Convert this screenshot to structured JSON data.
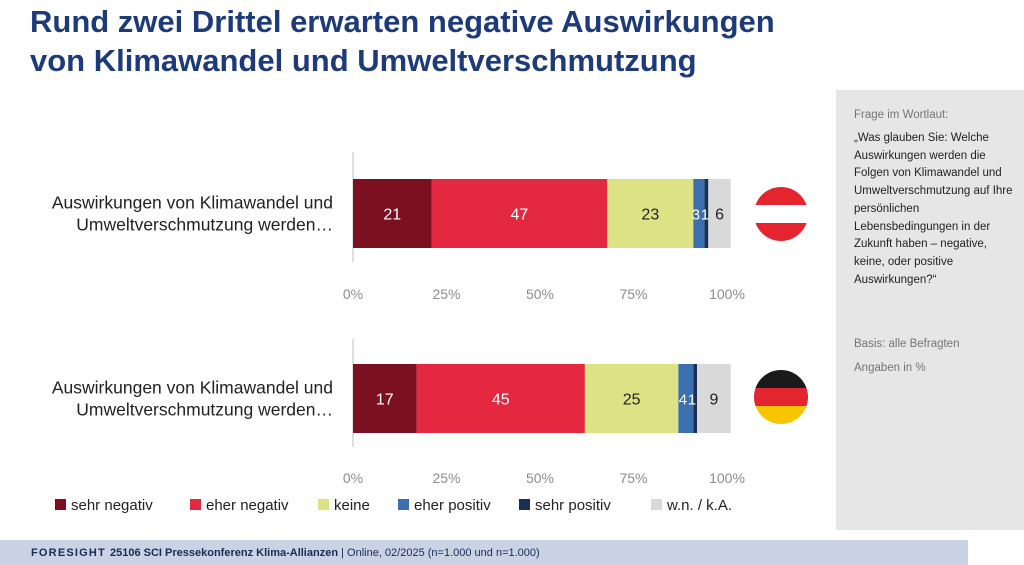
{
  "title": {
    "line1": "Rund zwei Drittel erwarten negative Auswirkungen",
    "line2": "von Klimawandel und Umweltverschmutzung"
  },
  "sidebar": {
    "question_heading": "Frage im Wortlaut:",
    "question_text": "„Was glauben Sie: Welche Auswirkungen werden die Folgen von Klimawandel und Umweltverschmutzung auf Ihre persönlichen Lebensbedingungen in der Zukunft haben – negative, keine, oder positive Auswirkungen?“",
    "basis": "Basis: alle Befragten",
    "unit": "Angaben in %"
  },
  "footer": {
    "brand": "FORESIGHT",
    "project": "25106 SCI Pressekonferenz Klima-Allianzen",
    "method": "| Online, 02/2025 (n=1.000 und n=1.000)"
  },
  "colors": {
    "title": "#1d3a7a",
    "sehr_negativ": "#7b1020",
    "eher_negativ": "#e3283f",
    "keine": "#dde384",
    "eher_positiv": "#3c6fb0",
    "sehr_positiv": "#1a2f52",
    "wn_ka": "#d9d9d9",
    "flag_at_red": "#e4252f",
    "flag_de_black": "#1a1a1a",
    "flag_de_red": "#e4252f",
    "flag_de_gold": "#f7c600"
  },
  "chart_data": [
    {
      "type": "bar",
      "orientation": "horizontal",
      "stacked": true,
      "country_flag": "Austria",
      "categories": [
        "Auswirkungen von Klimawandel und Umweltverschmutzung werden…"
      ],
      "xlim": [
        0,
        100
      ],
      "x_ticks": [
        "0%",
        "25%",
        "50%",
        "75%",
        "100%"
      ],
      "series": [
        {
          "name": "sehr negativ",
          "values": [
            21
          ]
        },
        {
          "name": "eher negativ",
          "values": [
            47
          ]
        },
        {
          "name": "keine",
          "values": [
            23
          ]
        },
        {
          "name": "eher positiv",
          "values": [
            3
          ]
        },
        {
          "name": "sehr positiv",
          "values": [
            1
          ]
        },
        {
          "name": "w.n. / k.A.",
          "values": [
            6
          ]
        }
      ]
    },
    {
      "type": "bar",
      "orientation": "horizontal",
      "stacked": true,
      "country_flag": "Germany",
      "categories": [
        "Auswirkungen von Klimawandel und Umweltverschmutzung werden…"
      ],
      "xlim": [
        0,
        100
      ],
      "x_ticks": [
        "0%",
        "25%",
        "50%",
        "75%",
        "100%"
      ],
      "series": [
        {
          "name": "sehr negativ",
          "values": [
            17
          ]
        },
        {
          "name": "eher negativ",
          "values": [
            45
          ]
        },
        {
          "name": "keine",
          "values": [
            25
          ]
        },
        {
          "name": "eher positiv",
          "values": [
            4
          ]
        },
        {
          "name": "sehr positiv",
          "values": [
            1
          ]
        },
        {
          "name": "w.n. / k.A.",
          "values": [
            9
          ]
        }
      ]
    }
  ],
  "legend": [
    "sehr negativ",
    "eher negativ",
    "keine",
    "eher positiv",
    "sehr positiv",
    "w.n. / k.A."
  ]
}
